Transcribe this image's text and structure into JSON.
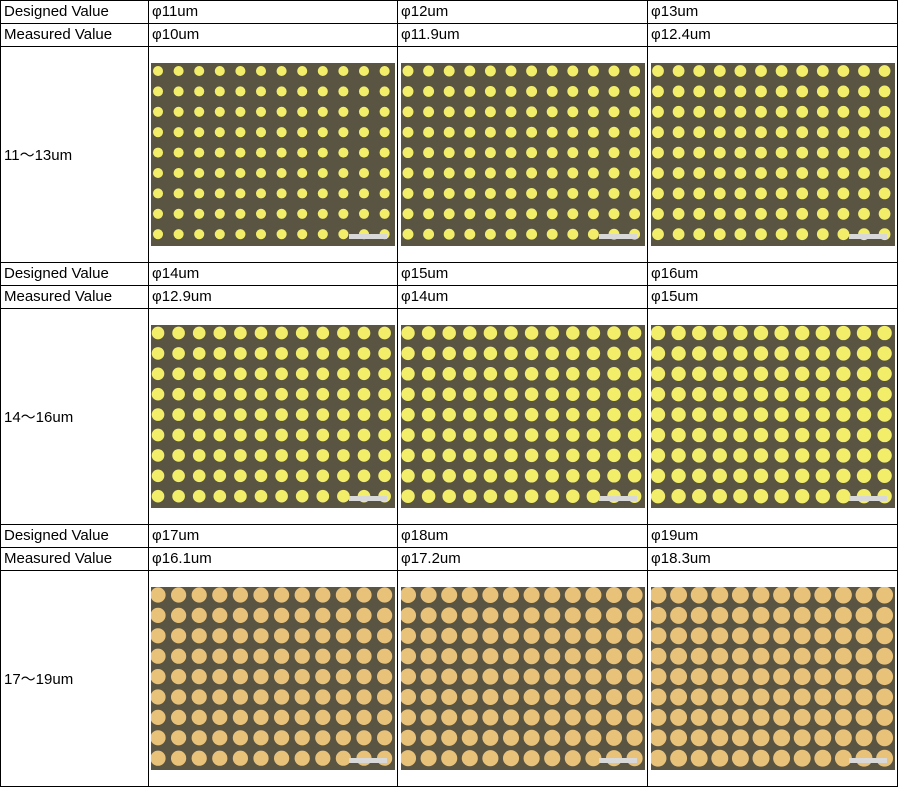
{
  "header_labels": {
    "designed": "Designed Value",
    "measured": "Measured Value"
  },
  "groups": [
    {
      "range_label": "11～13um",
      "cells": [
        {
          "designed": "φ11um",
          "measured": "φ10um",
          "dot_size": 11
        },
        {
          "designed": "φ12um",
          "measured": "φ11.9um",
          "dot_size": 12
        },
        {
          "designed": "φ13um",
          "measured": "φ12.4um",
          "dot_size": 13
        }
      ]
    },
    {
      "range_label": "14～16um",
      "cells": [
        {
          "designed": "φ14um",
          "measured": "φ12.9um",
          "dot_size": 14
        },
        {
          "designed": "φ15um",
          "measured": "φ14um",
          "dot_size": 15
        },
        {
          "designed": "φ16um",
          "measured": "φ15um",
          "dot_size": 16
        }
      ]
    },
    {
      "range_label": "17～19um",
      "cells": [
        {
          "designed": "φ17um",
          "measured": "φ16.1um",
          "dot_size": 17
        },
        {
          "designed": "φ18um",
          "measured": "φ17.2um",
          "dot_size": 18
        },
        {
          "designed": "φ19um",
          "measured": "φ18.3um",
          "dot_size": 19
        }
      ]
    }
  ],
  "colors": {
    "micrograph_background": "#5a5443",
    "dot_pale": "#f2ee6a",
    "dot_gold": "#e9c27a"
  }
}
